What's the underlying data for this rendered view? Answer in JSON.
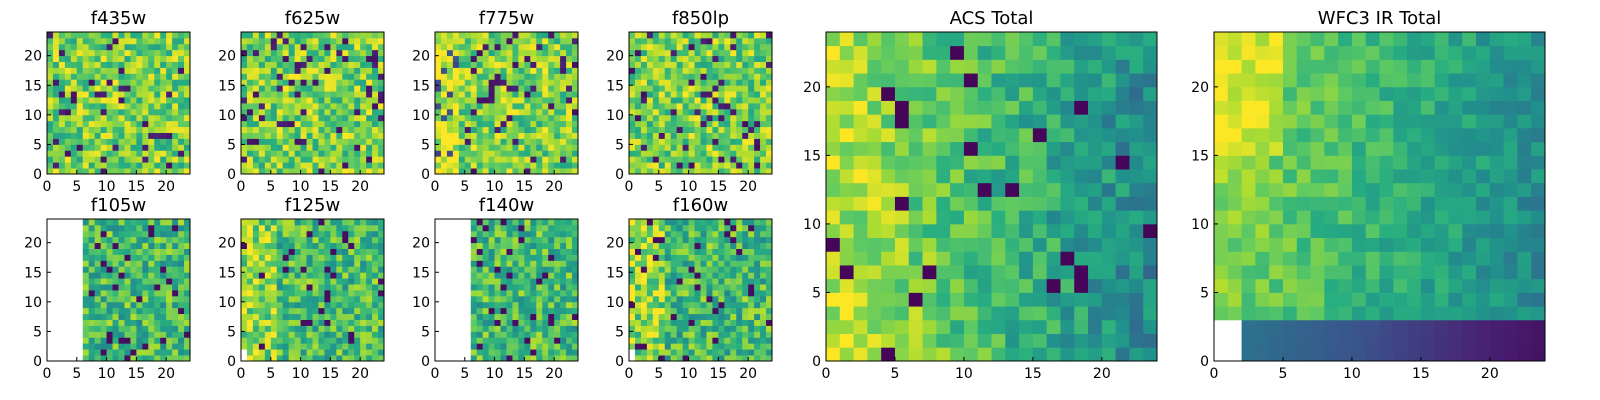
{
  "figure": {
    "title": ""
  },
  "chart_data": [
    {
      "type": "heatmap",
      "title": "f435w",
      "grid_size": 24,
      "xlim": [
        0,
        24
      ],
      "ylim": [
        0,
        24
      ],
      "x_ticks": [
        0,
        5,
        10,
        15,
        20
      ],
      "y_ticks": [
        0,
        5,
        10,
        15,
        20
      ],
      "colormap": "viridis",
      "masked_region": "none",
      "structure": "noise"
    },
    {
      "type": "heatmap",
      "title": "f625w",
      "grid_size": 24,
      "xlim": [
        0,
        24
      ],
      "ylim": [
        0,
        24
      ],
      "x_ticks": [
        0,
        5,
        10,
        15,
        20
      ],
      "y_ticks": [
        0,
        5,
        10,
        15,
        20
      ],
      "colormap": "viridis",
      "masked_region": "none",
      "structure": "noise"
    },
    {
      "type": "heatmap",
      "title": "f775w",
      "grid_size": 24,
      "xlim": [
        0,
        24
      ],
      "ylim": [
        0,
        24
      ],
      "x_ticks": [
        0,
        5,
        10,
        15,
        20
      ],
      "y_ticks": [
        0,
        5,
        10,
        15,
        20
      ],
      "colormap": "viridis",
      "masked_region": "none",
      "structure": "noise"
    },
    {
      "type": "heatmap",
      "title": "f850lp",
      "grid_size": 24,
      "xlim": [
        0,
        24
      ],
      "ylim": [
        0,
        24
      ],
      "x_ticks": [
        0,
        5,
        10,
        15,
        20
      ],
      "y_ticks": [
        0,
        5,
        10,
        15,
        20
      ],
      "colormap": "viridis",
      "masked_region": "none",
      "structure": "noise"
    },
    {
      "type": "heatmap",
      "title": "f105w",
      "grid_size": 24,
      "xlim": [
        0,
        24
      ],
      "ylim": [
        0,
        24
      ],
      "x_ticks": [
        0,
        5,
        10,
        15,
        20
      ],
      "y_ticks": [
        0,
        5,
        10,
        15,
        20
      ],
      "colormap": "viridis",
      "masked_region": "left columns 0-5 blank (white)",
      "structure": "patchy"
    },
    {
      "type": "heatmap",
      "title": "f125w",
      "grid_size": 24,
      "xlim": [
        0,
        24
      ],
      "ylim": [
        0,
        24
      ],
      "x_ticks": [
        0,
        5,
        10,
        15,
        20
      ],
      "y_ticks": [
        0,
        5,
        10,
        15,
        20
      ],
      "colormap": "viridis",
      "masked_region": "bottom-left corner small blank",
      "structure": "patchy"
    },
    {
      "type": "heatmap",
      "title": "f140w",
      "grid_size": 24,
      "xlim": [
        0,
        24
      ],
      "ylim": [
        0,
        24
      ],
      "x_ticks": [
        0,
        5,
        10,
        15,
        20
      ],
      "y_ticks": [
        0,
        5,
        10,
        15,
        20
      ],
      "colormap": "viridis",
      "masked_region": "left columns 0-6 blank (white)",
      "structure": "patchy"
    },
    {
      "type": "heatmap",
      "title": "f160w",
      "grid_size": 24,
      "xlim": [
        0,
        24
      ],
      "ylim": [
        0,
        24
      ],
      "x_ticks": [
        0,
        5,
        10,
        15,
        20
      ],
      "y_ticks": [
        0,
        5,
        10,
        15,
        20
      ],
      "colormap": "viridis",
      "masked_region": "bottom-left corner small blank",
      "structure": "patchy"
    },
    {
      "type": "heatmap",
      "title": "ACS Total",
      "grid_size": 24,
      "xlim": [
        0,
        24
      ],
      "ylim": [
        0,
        24
      ],
      "x_ticks": [
        0,
        5,
        10,
        15,
        20
      ],
      "y_ticks": [
        0,
        5,
        10,
        15,
        20
      ],
      "colormap": "viridis",
      "masked_region": "none",
      "structure": "bright left edge, darker right"
    },
    {
      "type": "heatmap",
      "title": "WFC3 IR Total",
      "grid_size": 24,
      "xlim": [
        0,
        24
      ],
      "ylim": [
        0,
        24
      ],
      "x_ticks": [
        0,
        5,
        10,
        15,
        20
      ],
      "y_ticks": [
        0,
        5,
        10,
        15,
        20
      ],
      "colormap": "viridis",
      "masked_region": "bottom-left corner small blank",
      "structure": "smooth, bright upper-left, dark bottom rows"
    }
  ]
}
